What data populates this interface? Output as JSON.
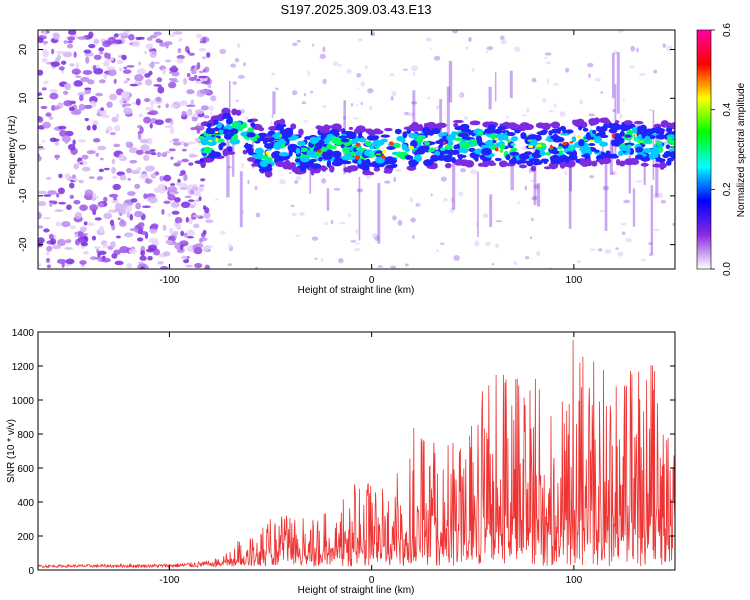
{
  "title": "S197.2025.309.03.43.E13",
  "chart_data": [
    {
      "type": "heatmap",
      "xlabel": "Height of straight line (km)",
      "ylabel": "Frequency (Hz)",
      "xlim": [
        -165,
        150
      ],
      "ylim": [
        -25,
        24
      ],
      "xticks": [
        -100,
        0,
        100
      ],
      "yticks": [
        -20,
        -10,
        0,
        10,
        20
      ],
      "colorbar": {
        "label": "Normalized spectral amplitude",
        "range": [
          0.0,
          0.6
        ],
        "ticks": [
          "0.0",
          "0.2",
          "0.4",
          "0.6"
        ],
        "colors": [
          "#ffffff",
          "#8a2be2",
          "#0000ff",
          "#00ffff",
          "#00ff00",
          "#ffff00",
          "#ff0000",
          "#ff00a0"
        ]
      },
      "ridge": {
        "x": [
          -165,
          -120,
          -100,
          -80,
          -72,
          -62,
          -52,
          -45,
          -35,
          -20,
          0,
          20,
          50,
          80,
          110,
          130,
          150
        ],
        "y": [
          0,
          0,
          0,
          1,
          3,
          3,
          -2,
          1,
          -1,
          0,
          -1,
          0,
          1,
          0,
          1,
          1,
          0
        ]
      }
    },
    {
      "type": "line",
      "xlabel": "Height of straight line (km)",
      "ylabel": "SNR (10 * v/v)",
      "xlim": [
        -165,
        150
      ],
      "ylim": [
        0,
        1400
      ],
      "xticks": [
        -100,
        0,
        100
      ],
      "yticks": [
        0,
        200,
        400,
        600,
        800,
        1000,
        1200,
        1400
      ],
      "color": "#ee3333",
      "envelope": {
        "x": [
          -165,
          -100,
          -80,
          -70,
          -60,
          -50,
          -40,
          -30,
          -20,
          -10,
          0,
          10,
          20,
          30,
          40,
          50,
          60,
          70,
          80,
          90,
          100,
          110,
          120,
          130,
          140,
          150
        ],
        "y": [
          25,
          30,
          50,
          150,
          250,
          320,
          330,
          290,
          420,
          500,
          530,
          480,
          850,
          830,
          800,
          930,
          1270,
          1130,
          1150,
          950,
          1400,
          1240,
          1150,
          1270,
          1240,
          700
        ]
      }
    }
  ]
}
